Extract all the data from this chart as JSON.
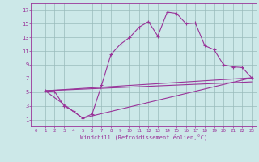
{
  "xlabel": "Windchill (Refroidissement éolien,°C)",
  "xlim": [
    -0.5,
    23.5
  ],
  "ylim": [
    0,
    18
  ],
  "xticks": [
    0,
    1,
    2,
    3,
    4,
    5,
    6,
    7,
    8,
    9,
    10,
    11,
    12,
    13,
    14,
    15,
    16,
    17,
    18,
    19,
    20,
    21,
    22,
    23
  ],
  "yticks": [
    1,
    3,
    5,
    7,
    9,
    11,
    13,
    15,
    17
  ],
  "bg_color": "#cce8e8",
  "line_color": "#993399",
  "grid_color": "#99bbbb",
  "line1_x": [
    1,
    2,
    3,
    4,
    5,
    6,
    7,
    8,
    9,
    10,
    11,
    12,
    13,
    14,
    15,
    16,
    17,
    18,
    19,
    20,
    21,
    22,
    23
  ],
  "line1_y": [
    5.2,
    5.1,
    3.0,
    2.2,
    1.2,
    1.8,
    6.0,
    10.5,
    12.0,
    13.0,
    14.5,
    15.3,
    13.2,
    16.7,
    16.5,
    15.0,
    15.1,
    11.8,
    11.2,
    9.0,
    8.7,
    8.6,
    7.1
  ],
  "line2_x": [
    1,
    5,
    23
  ],
  "line2_y": [
    5.2,
    1.2,
    7.1
  ],
  "line3_x": [
    1,
    23
  ],
  "line3_y": [
    5.2,
    7.1
  ],
  "line4_x": [
    1,
    23
  ],
  "line4_y": [
    5.2,
    6.5
  ]
}
